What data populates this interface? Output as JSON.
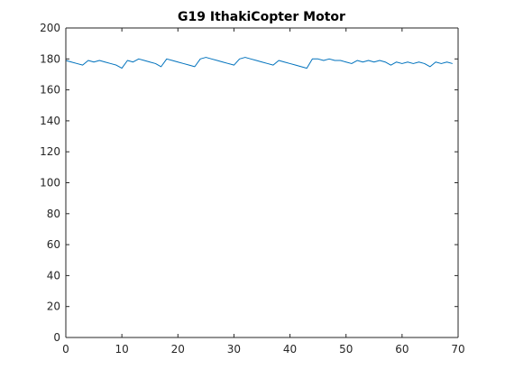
{
  "chart_data": {
    "type": "line",
    "title": "G19 IthakiCopter Motor",
    "xlabel": "",
    "ylabel": "",
    "xlim": [
      0,
      70
    ],
    "ylim": [
      0,
      200
    ],
    "xticks": [
      0,
      10,
      20,
      30,
      40,
      50,
      60,
      70
    ],
    "yticks": [
      0,
      20,
      40,
      60,
      80,
      100,
      120,
      140,
      160,
      180,
      200
    ],
    "grid": false,
    "legend": "none",
    "series": [
      {
        "color": "#0072BD",
        "x": [
          0,
          1,
          2,
          3,
          4,
          5,
          6,
          7,
          8,
          9,
          10,
          11,
          12,
          13,
          14,
          15,
          16,
          17,
          18,
          19,
          20,
          21,
          22,
          23,
          24,
          25,
          26,
          27,
          28,
          29,
          30,
          31,
          32,
          33,
          34,
          35,
          36,
          37,
          38,
          39,
          40,
          41,
          42,
          43,
          44,
          45,
          46,
          47,
          48,
          49,
          50,
          51,
          52,
          53,
          54,
          55,
          56,
          57,
          58,
          59,
          60,
          61,
          62,
          63,
          64,
          65,
          66,
          67,
          68,
          69
        ],
        "y": [
          179,
          178,
          177,
          176,
          179,
          178,
          179,
          178,
          177,
          176,
          174,
          179,
          178,
          180,
          179,
          178,
          177,
          175,
          180,
          179,
          178,
          177,
          176,
          175,
          180,
          181,
          180,
          179,
          178,
          177,
          176,
          180,
          181,
          180,
          179,
          178,
          177,
          176,
          179,
          178,
          177,
          176,
          175,
          174,
          180,
          180,
          179,
          180,
          179,
          179,
          178,
          177,
          179,
          178,
          179,
          178,
          179,
          178,
          176,
          178,
          177,
          178,
          177,
          178,
          177,
          175,
          178,
          177,
          178,
          177
        ]
      }
    ]
  }
}
